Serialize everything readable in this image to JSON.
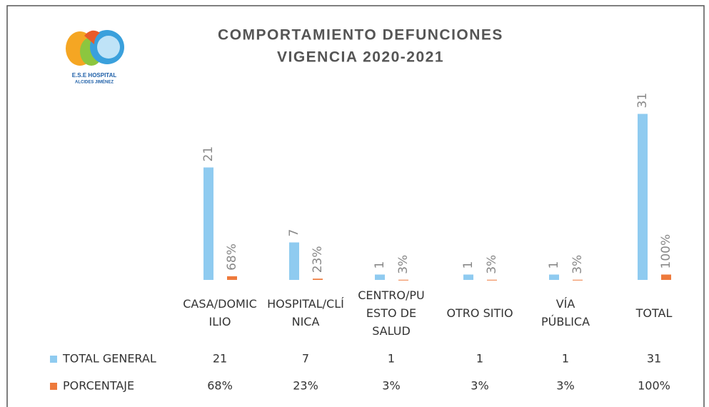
{
  "logo": {
    "line1": "E.S.E HOSPITAL",
    "line2": "ALCIDES JIMÉNEZ"
  },
  "chart_data": {
    "type": "bar",
    "title": "COMPORTAMIENTO DEFUNCIONES",
    "subtitle": "VIGENCIA 2020-2021",
    "categories": [
      "CASA/DOMICILIO",
      "HOSPITAL/CLÍNICA",
      "CENTRO/PUESTO DE SALUD",
      "OTRO SITIO",
      "VÍA PÚBLICA",
      "TOTAL"
    ],
    "ylim": [
      0,
      32
    ],
    "y2lim": [
      0,
      3200
    ],
    "series": [
      {
        "name": "TOTAL GENERAL",
        "color": "#8fcbf0",
        "values": [
          21,
          7,
          1,
          1,
          1,
          31
        ]
      },
      {
        "name": "PORCENTAJE",
        "color": "#ee7a3c",
        "axis": "y2",
        "values": [
          68,
          23,
          3,
          3,
          3,
          100
        ],
        "value_labels": [
          "68%",
          "23%",
          "3%",
          "3%",
          "3%",
          "100%"
        ]
      }
    ]
  }
}
